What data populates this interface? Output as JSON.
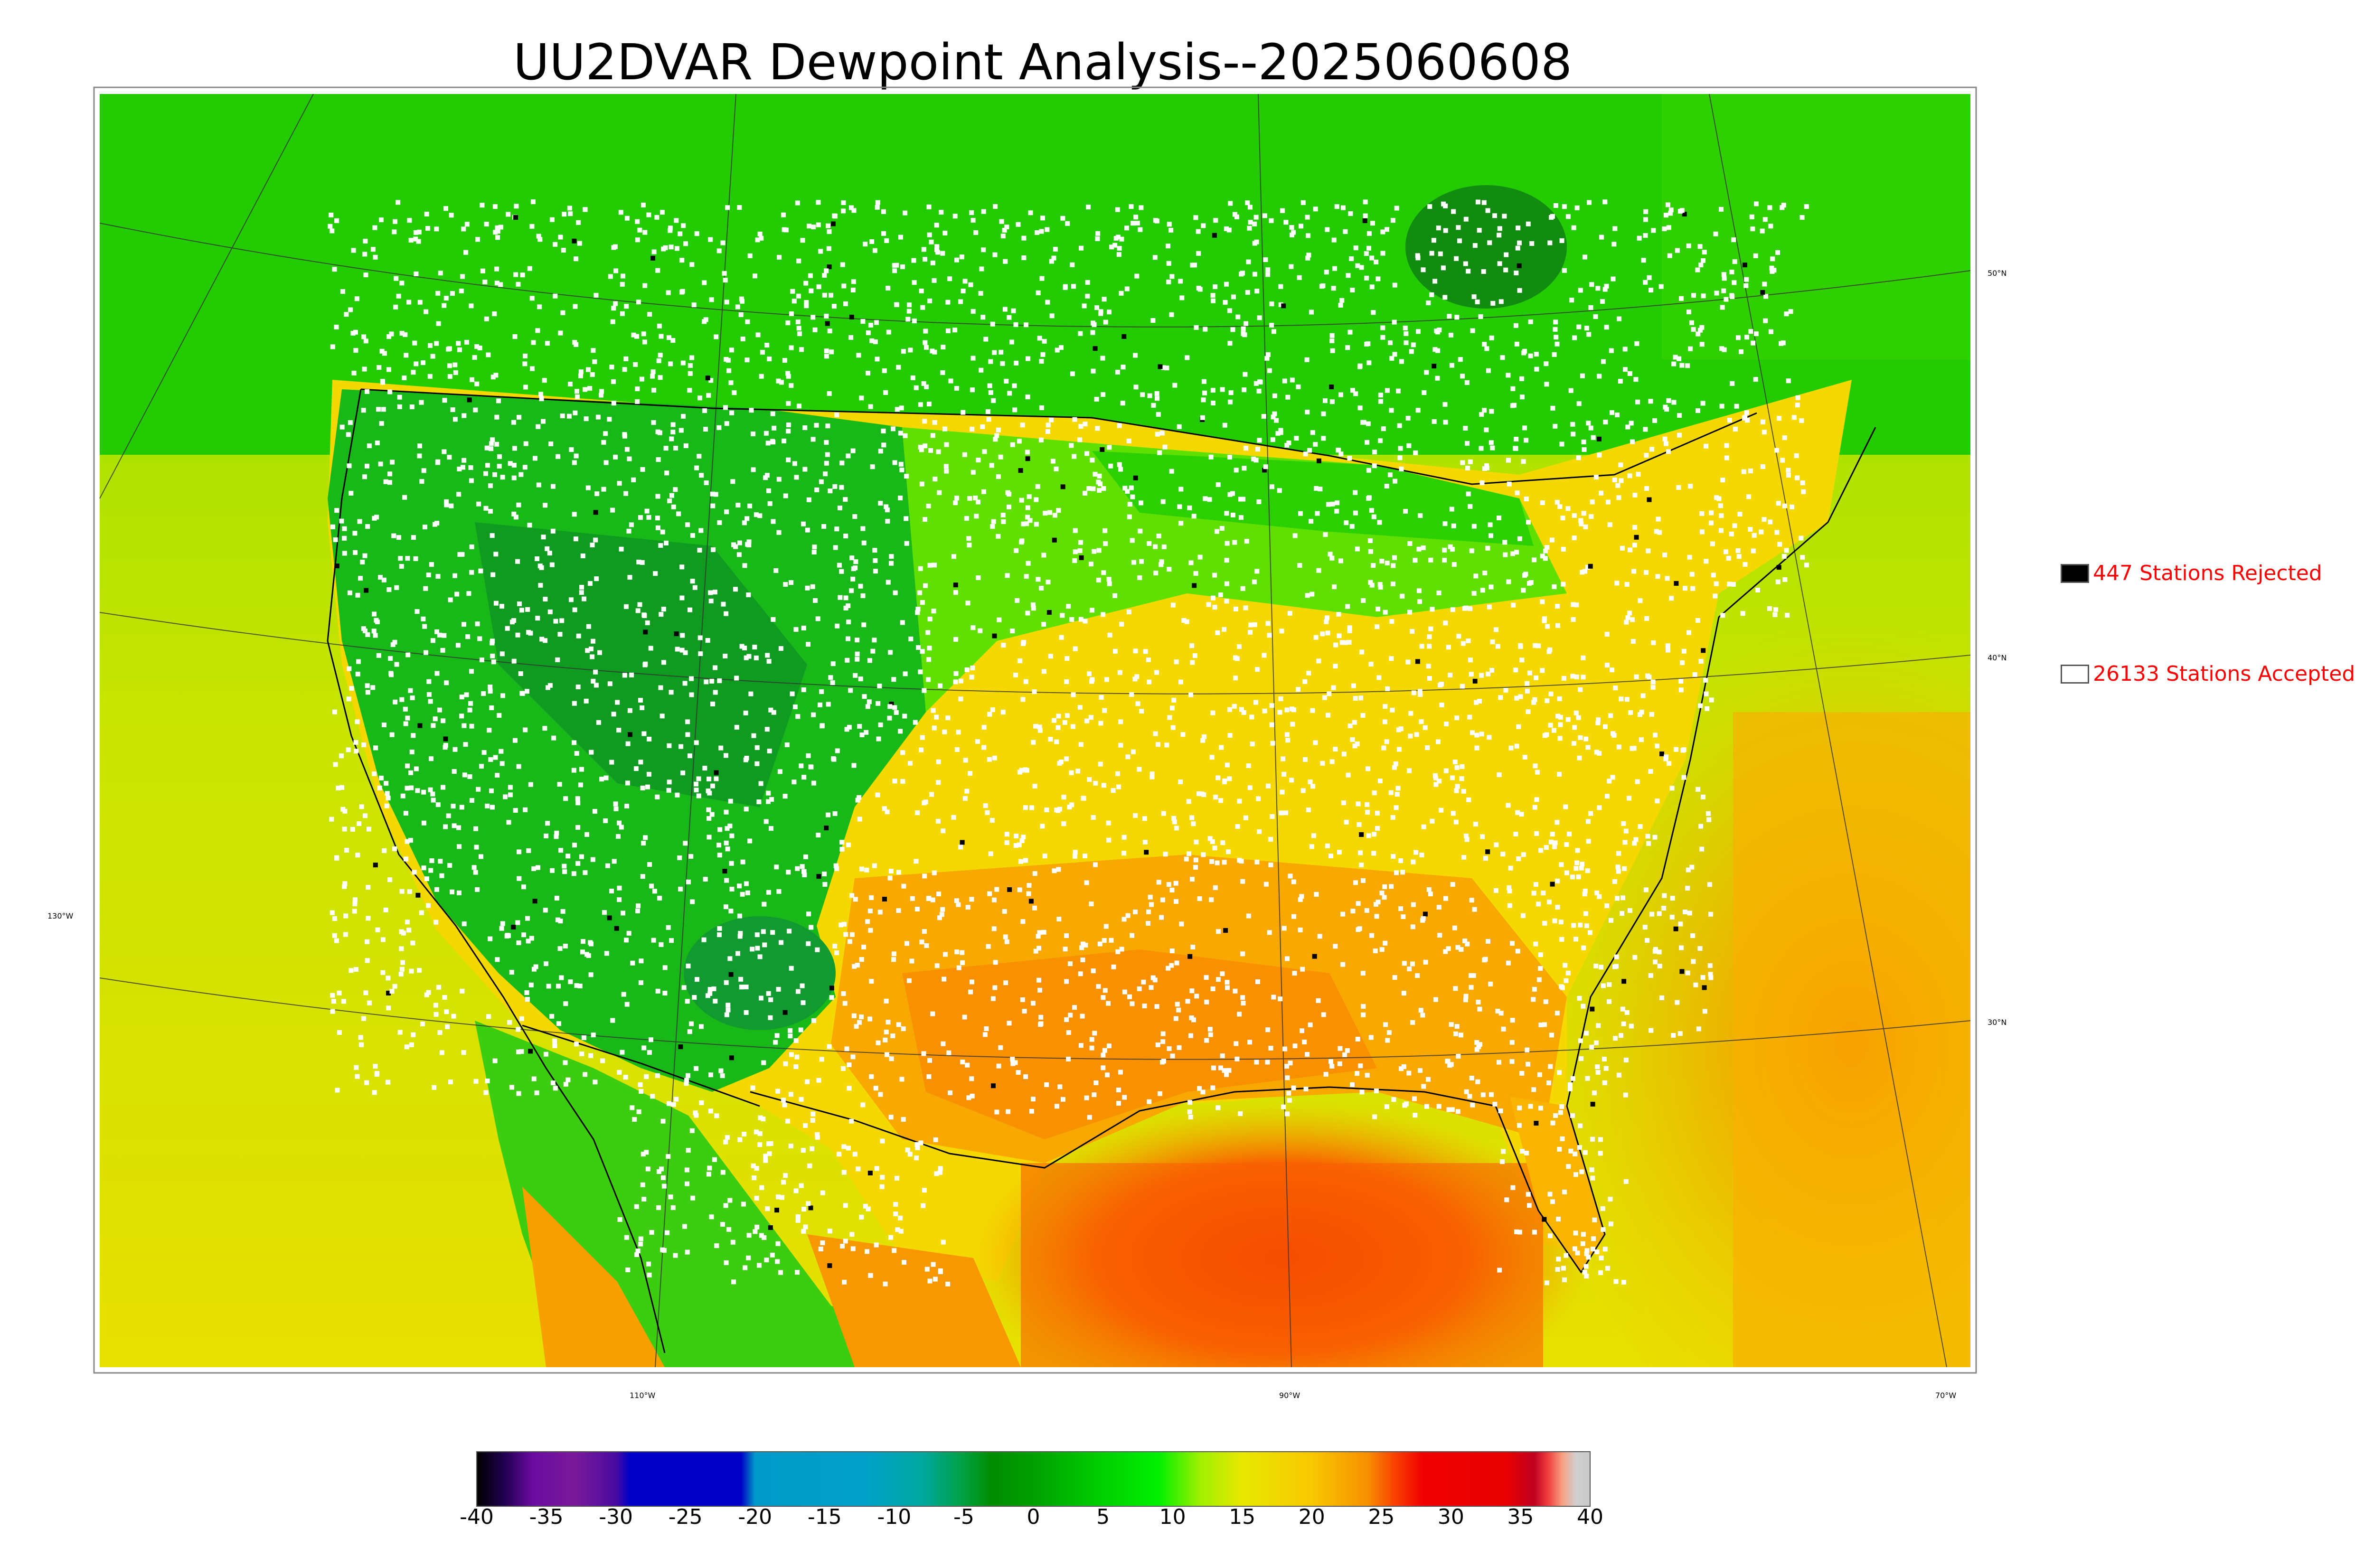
{
  "title": "UU2DVAR Dewpoint Analysis--2025060608",
  "legend": {
    "rejected": {
      "count": 447,
      "label": "447 Stations Rejected",
      "color": "#000000"
    },
    "accepted": {
      "count": 26133,
      "label": "26133 Stations Accepted",
      "color": "#ffffff"
    }
  },
  "map": {
    "lat_labels": [
      "50°N",
      "40°N",
      "30°N"
    ],
    "lon_labels": [
      "130°W",
      "110°W",
      "90°W",
      "70°W"
    ]
  },
  "colorbar": {
    "ticks": [
      "-40",
      "-35",
      "-30",
      "-25",
      "-20",
      "-15",
      "-10",
      "-5",
      "0",
      "5",
      "10",
      "15",
      "20",
      "25",
      "30",
      "35",
      "40"
    ],
    "range": [
      -40,
      40
    ],
    "stops": [
      {
        "v": -40,
        "c": "#000000"
      },
      {
        "v": -38,
        "c": "#200050"
      },
      {
        "v": -36,
        "c": "#6a0ba0"
      },
      {
        "v": -33,
        "c": "#7a1a9a"
      },
      {
        "v": -30,
        "c": "#4a0aa0"
      },
      {
        "v": -29,
        "c": "#0000c8"
      },
      {
        "v": -21,
        "c": "#0000c8"
      },
      {
        "v": -20,
        "c": "#009ac8"
      },
      {
        "v": -12,
        "c": "#00a0c8"
      },
      {
        "v": -8,
        "c": "#00a8a0"
      },
      {
        "v": -5,
        "c": "#00a040"
      },
      {
        "v": -3,
        "c": "#008c00"
      },
      {
        "v": 0,
        "c": "#00a000"
      },
      {
        "v": 5,
        "c": "#00d000"
      },
      {
        "v": 9,
        "c": "#00f000"
      },
      {
        "v": 12,
        "c": "#a0f000"
      },
      {
        "v": 15,
        "c": "#e8e800"
      },
      {
        "v": 20,
        "c": "#f8c800"
      },
      {
        "v": 24,
        "c": "#f89000"
      },
      {
        "v": 26,
        "c": "#f84000"
      },
      {
        "v": 28,
        "c": "#f00000"
      },
      {
        "v": 34,
        "c": "#e80000"
      },
      {
        "v": 36,
        "c": "#c00020"
      },
      {
        "v": 37,
        "c": "#f04040"
      },
      {
        "v": 38,
        "c": "#f8a080"
      },
      {
        "v": 39,
        "c": "#d0d0d0"
      },
      {
        "v": 40,
        "c": "#c8c8c8"
      }
    ]
  }
}
